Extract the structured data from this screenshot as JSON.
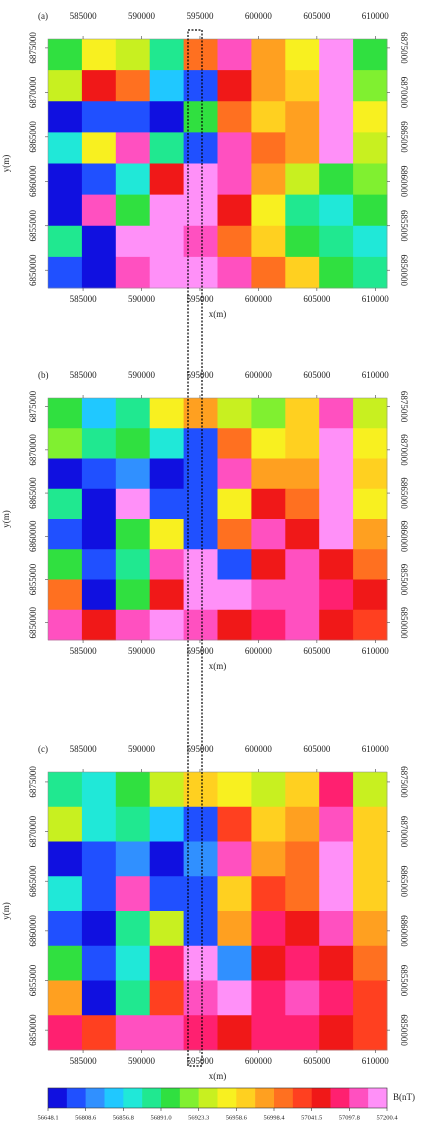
{
  "chart_data": [
    {
      "type": "heatmap",
      "title": "(a)",
      "xlabel": "x(m)",
      "ylabel": "y(m)",
      "xlim": [
        582000,
        611000
      ],
      "xticks": [
        585000,
        590000,
        595000,
        600000,
        605000,
        610000
      ],
      "ylim": [
        6848000,
        6876000
      ],
      "yticks": [
        6850000,
        6855000,
        6860000,
        6865000,
        6870000,
        6875000
      ],
      "z": [
        [
          56900,
          56950,
          56930,
          56880,
          57000,
          57100,
          56980,
          56950,
          57150,
          56900
        ],
        [
          56930,
          57050,
          57000,
          56850,
          56750,
          57050,
          56990,
          56960,
          57180,
          56920
        ],
        [
          56700,
          56750,
          56800,
          56700,
          56900,
          57000,
          56960,
          56980,
          57200,
          56950
        ],
        [
          56860,
          56950,
          57100,
          56880,
          56780,
          57120,
          57000,
          56980,
          57150,
          56930
        ],
        [
          56720,
          56780,
          56860,
          57050,
          57200,
          57100,
          56990,
          56940,
          56900,
          56920
        ],
        [
          56700,
          57100,
          56900,
          57150,
          57200,
          57050,
          56950,
          56880,
          56860,
          56900
        ],
        [
          56880,
          56720,
          57150,
          57200,
          57100,
          57000,
          56970,
          56900,
          56880,
          56870
        ],
        [
          56750,
          56700,
          57100,
          57150,
          57200,
          57100,
          57000,
          56960,
          56900,
          56880
        ]
      ]
    },
    {
      "type": "heatmap",
      "title": "(b)",
      "xlabel": "x(m)",
      "ylabel": "y(m)",
      "xlim": [
        582000,
        611000
      ],
      "xticks": [
        585000,
        590000,
        595000,
        600000,
        605000,
        610000
      ],
      "ylim": [
        6848000,
        6876000
      ],
      "yticks": [
        6850000,
        6855000,
        6860000,
        6865000,
        6870000,
        6875000
      ],
      "z": [
        [
          56900,
          56850,
          56880,
          56950,
          56980,
          56940,
          56920,
          56960,
          57100,
          56930
        ],
        [
          56920,
          56880,
          56900,
          56860,
          56750,
          57000,
          56950,
          56970,
          57150,
          56950
        ],
        [
          56700,
          56750,
          56820,
          56700,
          56800,
          57100,
          56980,
          56990,
          57180,
          56960
        ],
        [
          56880,
          56720,
          57150,
          56800,
          56750,
          56950,
          57050,
          57000,
          57200,
          56950
        ],
        [
          56750,
          56700,
          56900,
          56950,
          56780,
          57000,
          57100,
          57050,
          57150,
          56980
        ],
        [
          56900,
          56760,
          56880,
          57100,
          57200,
          56800,
          57050,
          57100,
          57050,
          57000
        ],
        [
          57000,
          56700,
          56900,
          57050,
          57150,
          57180,
          57100,
          57120,
          57080,
          57050
        ],
        [
          57100,
          57050,
          57120,
          57150,
          57100,
          57050,
          57080,
          57100,
          57060,
          57040
        ]
      ]
    },
    {
      "type": "heatmap",
      "title": "(c)",
      "xlabel": "x(m)",
      "ylabel": "y(m)",
      "xlim": [
        582000,
        611000
      ],
      "xticks": [
        585000,
        590000,
        595000,
        600000,
        605000,
        610000
      ],
      "ylim": [
        6848000,
        6876000
      ],
      "yticks": [
        6850000,
        6855000,
        6860000,
        6865000,
        6870000,
        6875000
      ],
      "z": [
        [
          56880,
          56860,
          56900,
          56940,
          56970,
          56950,
          56930,
          56970,
          57080,
          56940
        ],
        [
          56930,
          56870,
          56890,
          56850,
          56740,
          57020,
          56960,
          56980,
          57120,
          56960
        ],
        [
          56710,
          56760,
          56830,
          56700,
          56820,
          57100,
          56990,
          57000,
          57160,
          56970
        ],
        [
          56870,
          56730,
          57140,
          56780,
          56760,
          56960,
          57040,
          57010,
          57180,
          56960
        ],
        [
          56760,
          56700,
          56880,
          56940,
          56790,
          56990,
          57090,
          57060,
          57140,
          56990
        ],
        [
          56900,
          56750,
          56870,
          57080,
          57180,
          56810,
          57060,
          57090,
          57060,
          57010
        ],
        [
          56990,
          56710,
          56890,
          57040,
          57140,
          57160,
          57090,
          57110,
          57070,
          57040
        ],
        [
          57080,
          57040,
          57100,
          57130,
          57090,
          57060,
          57070,
          57090,
          57050,
          57030
        ]
      ]
    },
    {
      "type": "colorbar",
      "label": "B(nT)",
      "ticks": [
        56648.1,
        56808.6,
        56856.8,
        {
          "value": 56891.0,
          "label": "56891.0"
        },
        56923.3,
        56958.6,
        56998.4,
        57041.5,
        57097.8,
        57200.4
      ],
      "colors": [
        "#1010e0",
        "#2050ff",
        "#3090ff",
        "#20c8ff",
        "#20e8d8",
        "#20e890",
        "#30e040",
        "#80f030",
        "#c8f020",
        "#f8f020",
        "#ffd020",
        "#ffa020",
        "#ff7020",
        "#ff4020",
        "#f01818",
        "#ff2070",
        "#ff50c0",
        "#ff90f8"
      ]
    }
  ]
}
